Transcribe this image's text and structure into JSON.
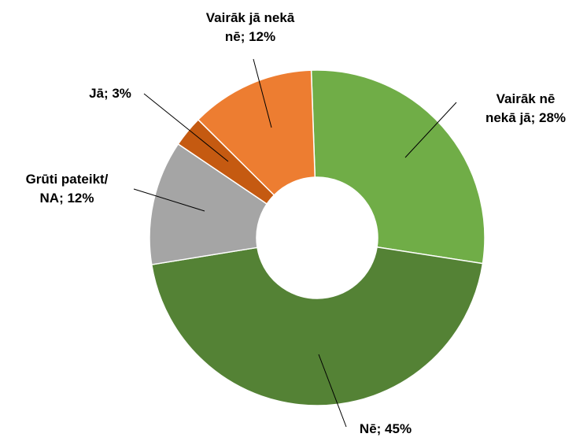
{
  "chart_data": {
    "type": "donut",
    "values": [
      28,
      45,
      12,
      3,
      12
    ],
    "value_labels": [
      "Vairāk nē nekā jā; 28%",
      "Nē; 45%",
      "Grūti pateikt/ NA; 12%",
      "Jā; 3%",
      "Vairāk jā nekā nē; 12%"
    ],
    "colors": [
      "#70ad47",
      "#548235",
      "#a5a5a5",
      "#c55a11",
      "#ed7d31"
    ]
  }
}
